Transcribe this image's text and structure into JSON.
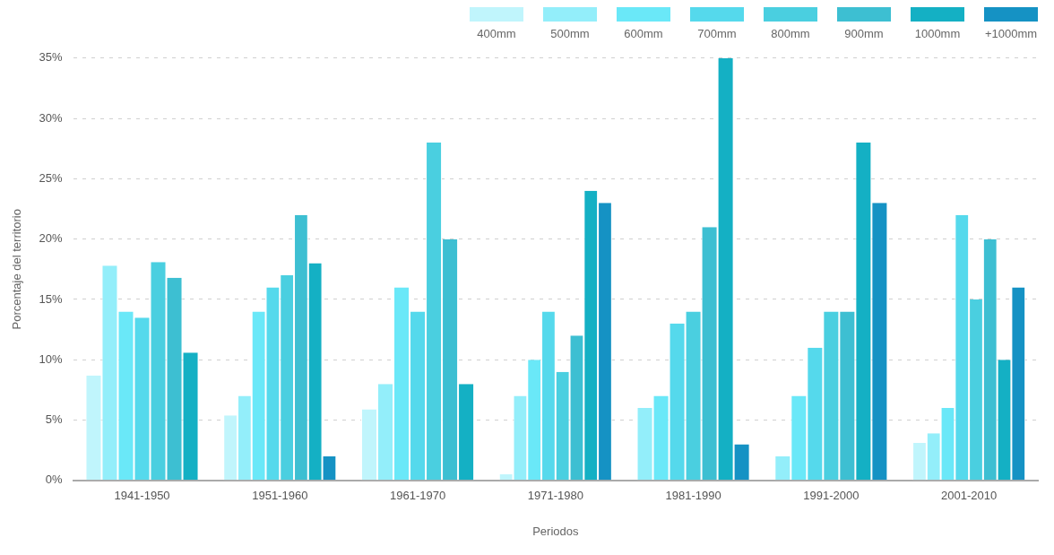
{
  "chart_data": {
    "type": "bar",
    "xlabel": "Periodos",
    "ylabel": "Porcentaje del territorio",
    "categories": [
      "1941-1950",
      "1951-1960",
      "1961-1970",
      "1971-1980",
      "1981-1990",
      "1991-2000",
      "2001-2010"
    ],
    "series": [
      {
        "name": "400mm",
        "color": "#c0f5fc",
        "values": [
          8.7,
          5.4,
          5.9,
          0.5,
          null,
          null,
          3.1
        ]
      },
      {
        "name": "500mm",
        "color": "#93eefa",
        "values": [
          17.8,
          7,
          8,
          7,
          6,
          2,
          3.9
        ]
      },
      {
        "name": "600mm",
        "color": "#6ae8f8",
        "values": [
          14,
          14,
          16,
          10,
          7,
          7,
          6
        ]
      },
      {
        "name": "700mm",
        "color": "#55d9ec",
        "values": [
          13.5,
          16,
          14,
          14,
          13,
          11,
          22
        ]
      },
      {
        "name": "800mm",
        "color": "#4acfe0",
        "values": [
          18.1,
          17,
          28,
          9,
          14,
          14,
          15
        ]
      },
      {
        "name": "900mm",
        "color": "#3dbfd2",
        "values": [
          16.8,
          22,
          20,
          12,
          21,
          14,
          20
        ]
      },
      {
        "name": "1000mm",
        "color": "#14b0c4",
        "values": [
          10.6,
          18,
          8,
          24,
          35,
          28,
          10
        ]
      },
      {
        "name": "+1000mm",
        "color": "#1592c4",
        "values": [
          null,
          2,
          null,
          23,
          3,
          23,
          16
        ]
      }
    ],
    "ylim": [
      0,
      35
    ],
    "yticks": [
      {
        "value": 0,
        "label": "0%"
      },
      {
        "value": 5,
        "label": "5%"
      },
      {
        "value": 10,
        "label": "10%"
      },
      {
        "value": 15,
        "label": "15%"
      },
      {
        "value": 20,
        "label": "20%"
      },
      {
        "value": 25,
        "label": "25%"
      },
      {
        "value": 30,
        "label": "30%"
      },
      {
        "value": 35,
        "label": "35%"
      }
    ],
    "grid": "y",
    "legend": "top"
  }
}
